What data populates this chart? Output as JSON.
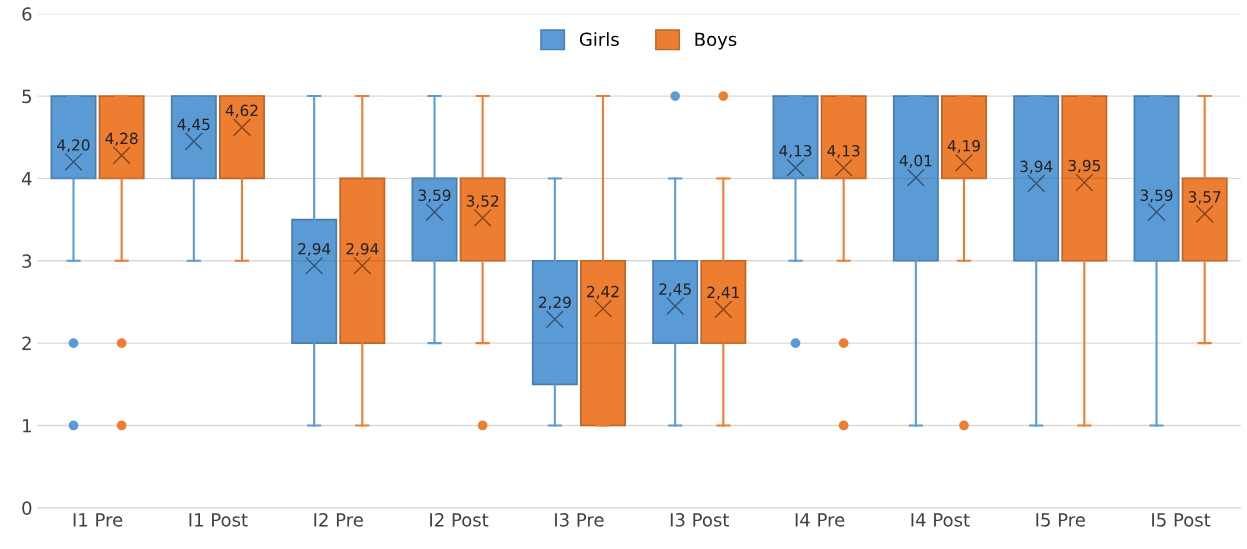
{
  "chart_data": {
    "type": "box",
    "categories": [
      "I1 Pre",
      "I1 Post",
      "I2 Pre",
      "I2 Post",
      "I3 Pre",
      "I3 Post",
      "I4 Pre",
      "I4 Post",
      "I5 Pre",
      "I5 Post"
    ],
    "series": [
      {
        "name": "Girls",
        "color": "#5b9bd5",
        "value_labels": [
          "4,20",
          "4,45",
          "2,94",
          "3,59",
          "2,29",
          "2,45",
          "4,13",
          "4,01",
          "3,94",
          "3,59"
        ],
        "boxes": [
          {
            "low": 3,
            "q1": 4,
            "median": 4,
            "q3": 5,
            "high": 5,
            "mean": 4.2,
            "outliers": [
              1,
              2
            ]
          },
          {
            "low": 3,
            "q1": 4,
            "median": 5,
            "q3": 5,
            "high": 5,
            "mean": 4.45
          },
          {
            "low": 1,
            "q1": 2,
            "median": 3,
            "q3": 3.5,
            "high": 5,
            "mean": 2.94
          },
          {
            "low": 2,
            "q1": 3,
            "median": 4,
            "q3": 4,
            "high": 5,
            "mean": 3.59
          },
          {
            "low": 1,
            "q1": 1.5,
            "median": 2,
            "q3": 3,
            "high": 4,
            "mean": 2.29
          },
          {
            "low": 1,
            "q1": 2,
            "median": 2,
            "q3": 3,
            "high": 4,
            "mean": 2.45,
            "outliers": [
              5
            ]
          },
          {
            "low": 3,
            "q1": 4,
            "median": 4,
            "q3": 5,
            "high": 5,
            "mean": 4.13,
            "outliers": [
              2
            ]
          },
          {
            "low": 1,
            "q1": 3,
            "median": 4,
            "q3": 5,
            "high": 5,
            "mean": 4.01
          },
          {
            "low": 1,
            "q1": 3,
            "median": 4,
            "q3": 5,
            "high": 5,
            "mean": 3.94
          },
          {
            "low": 1,
            "q1": 3,
            "median": 3,
            "q3": 5,
            "high": 5,
            "mean": 3.59
          }
        ]
      },
      {
        "name": "Boys",
        "color": "#ed7d31",
        "value_labels": [
          "4,28",
          "4,62",
          "2,94",
          "3,52",
          "2,42",
          "2,41",
          "4,13",
          "4,19",
          "3,95",
          "3,57"
        ],
        "boxes": [
          {
            "low": 3,
            "q1": 4,
            "median": 4,
            "q3": 5,
            "high": 5,
            "mean": 4.28,
            "outliers": [
              1,
              2
            ]
          },
          {
            "low": 3,
            "q1": 4,
            "median": 5,
            "q3": 5,
            "high": 5,
            "mean": 4.62
          },
          {
            "low": 1,
            "q1": 2,
            "median": 3,
            "q3": 4,
            "high": 5,
            "mean": 2.94
          },
          {
            "low": 2,
            "q1": 3,
            "median": 4,
            "q3": 4,
            "high": 5,
            "mean": 3.52,
            "outliers": [
              1
            ]
          },
          {
            "low": 1,
            "q1": 1,
            "median": 2,
            "q3": 3,
            "high": 5,
            "mean": 2.42
          },
          {
            "low": 1,
            "q1": 2,
            "median": 2,
            "q3": 3,
            "high": 4,
            "mean": 2.41,
            "outliers": [
              5
            ]
          },
          {
            "low": 3,
            "q1": 4,
            "median": 4,
            "q3": 5,
            "high": 5,
            "mean": 4.13,
            "outliers": [
              1,
              2
            ]
          },
          {
            "low": 3,
            "q1": 4,
            "median": 4,
            "q3": 5,
            "high": 5,
            "mean": 4.19,
            "outliers": [
              1
            ]
          },
          {
            "low": 1,
            "q1": 3,
            "median": 4,
            "q3": 5,
            "high": 5,
            "mean": 3.95
          },
          {
            "low": 2,
            "q1": 3,
            "median": 4,
            "q3": 4,
            "high": 5,
            "mean": 3.57
          }
        ]
      }
    ],
    "ylim": [
      0,
      6
    ],
    "yticks": [
      0,
      1,
      2,
      3,
      4,
      5,
      6
    ],
    "grid": "y",
    "legend": "top"
  }
}
